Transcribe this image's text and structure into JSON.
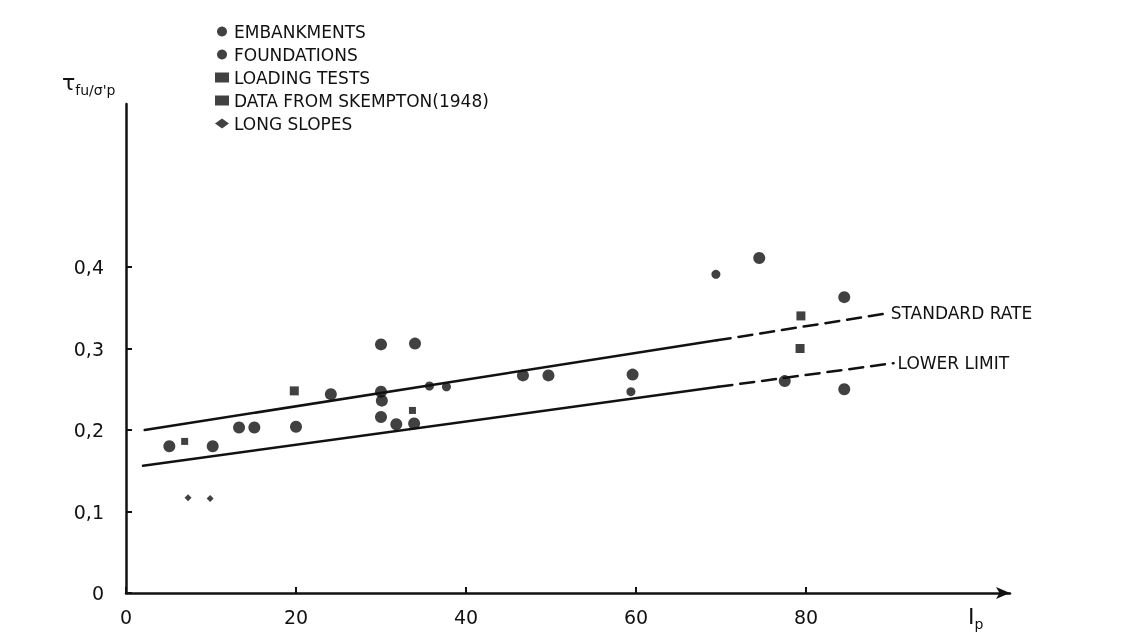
{
  "chart_data": {
    "type": "scatter",
    "xlabel": "I$_{p}$",
    "ylabel": "τ$_{fu/σ'p}$",
    "xlim": [
      0,
      104
    ],
    "xticks": [
      0,
      20,
      40,
      60,
      80
    ],
    "ylim": [
      0,
      0.6
    ],
    "yticks": [
      0,
      {
        "value": 0.1,
        "label": "0,1"
      },
      {
        "value": 0.2,
        "label": "0,2"
      },
      {
        "value": 0.3,
        "label": "0,3"
      },
      {
        "value": 0.4,
        "label": "0,4"
      }
    ],
    "grid": false,
    "legend": "top left",
    "series": [
      {
        "name": "EMBANKMENTS",
        "marker": "circle",
        "color": "#111111",
        "x": [
          5.1,
          10.2,
          13.3,
          15.1,
          20,
          24.1,
          30,
          34,
          30,
          30.1,
          30,
          31.8,
          33.9,
          46.7,
          49.7,
          59.6,
          74.5,
          77.5,
          84.5,
          84.5
        ],
        "values": [
          0.18,
          0.18,
          0.203,
          0.203,
          0.204,
          0.244,
          0.305,
          0.306,
          0.247,
          0.236,
          0.216,
          0.207,
          0.208,
          0.267,
          0.267,
          0.268,
          0.411,
          0.26,
          0.363,
          0.25
        ]
      },
      {
        "name": "FOUNDATIONS",
        "marker": "circle",
        "color": "#111111",
        "x": [
          35.7,
          37.7,
          59.4,
          69.4
        ],
        "values": [
          0.254,
          0.253,
          0.247,
          0.391
        ]
      },
      {
        "name": "LOADING TESTS",
        "marker": "square",
        "color": "#111111",
        "x": [
          19.8,
          79.4,
          79.3
        ],
        "values": [
          0.248,
          0.34,
          0.3
        ]
      },
      {
        "name": "DATA FROM SKEMPTON(1948)",
        "marker": "square",
        "color": "#111111",
        "x": [
          6.9,
          33.7
        ],
        "values": [
          0.186,
          0.224
        ]
      },
      {
        "name": "LONG SLOPES",
        "marker": "diamond",
        "color": "#111111",
        "x": [
          7.3,
          9.9
        ],
        "values": [
          0.117,
          0.116
        ]
      },
      {
        "type": "line",
        "marker": "none",
        "line_style": "solid",
        "color": "#111111",
        "x": [
          2.2,
          69.5
        ],
        "values": [
          0.2,
          0.31
        ]
      },
      {
        "name": "STANDARD RATE",
        "type": "line",
        "marker": "none",
        "line_style": "dashed",
        "color": "#111111",
        "x": [
          69.5,
          89.5
        ],
        "values": [
          0.31,
          0.343
        ]
      },
      {
        "type": "line",
        "marker": "none",
        "line_style": "solid",
        "color": "#111111",
        "x": [
          2,
          69.7
        ],
        "values": [
          0.156,
          0.253
        ]
      },
      {
        "name": "LOWER LIMIT",
        "type": "line",
        "marker": "none",
        "line_style": "dashed",
        "color": "#111111",
        "x": [
          69.7,
          90.3
        ],
        "values": [
          0.253,
          0.282
        ]
      }
    ]
  }
}
